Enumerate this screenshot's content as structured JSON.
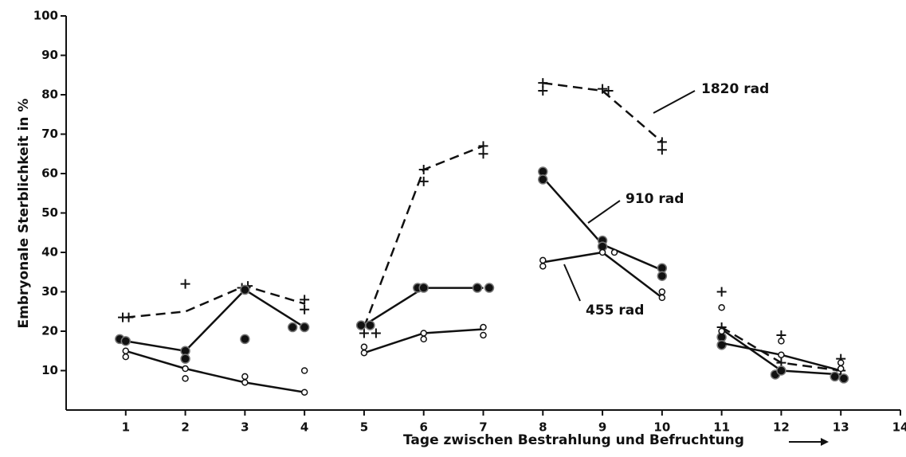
{
  "chart_data": {
    "type": "line",
    "y_label": "Embryonale   Sterblichkeit in %",
    "x_label": "Tage zwischen Bestrahlung und Befruchtung",
    "xlim": [
      0,
      14
    ],
    "xticks": [
      1,
      2,
      3,
      4,
      5,
      6,
      7,
      8,
      9,
      10,
      11,
      12,
      13,
      14
    ],
    "ylim": [
      0,
      100
    ],
    "yticks": [
      10,
      20,
      30,
      40,
      50,
      60,
      70,
      80,
      90,
      100
    ],
    "x": [
      1,
      2,
      3,
      4,
      null,
      5,
      6,
      7,
      null,
      8,
      9,
      10,
      null,
      11,
      12,
      13
    ],
    "series": [
      {
        "name": "1820 rad",
        "color": "#111111",
        "dashed": true,
        "marker": "plus",
        "values": [
          23.5,
          25,
          31.5,
          27,
          null,
          21,
          61,
          67,
          null,
          83,
          81,
          68,
          null,
          21,
          12,
          10
        ],
        "points": {
          "x": [
            0.95,
            1.05,
            2,
            2.95,
            3.05,
            4,
            4,
            5,
            5.2,
            6,
            6,
            7,
            7,
            8,
            8,
            9,
            9.1,
            10,
            10,
            11,
            11,
            12,
            12,
            13,
            13
          ],
          "y": [
            23.5,
            23.5,
            32,
            31,
            31.5,
            28,
            25.5,
            19.5,
            19.5,
            58,
            61,
            67,
            65,
            83,
            81,
            81.5,
            81,
            68,
            66,
            30,
            21,
            19,
            12,
            13,
            10
          ]
        }
      },
      {
        "name": "910 rad",
        "color": "#111111",
        "dashed": false,
        "marker": "filled-circle",
        "values": [
          17.5,
          15,
          30.5,
          21,
          null,
          21.5,
          31,
          31,
          null,
          59,
          42,
          35.5,
          null,
          20.5,
          10,
          9
        ],
        "points": {
          "x": [
            0.9,
            1,
            2,
            2,
            3,
            3,
            3.8,
            4,
            4.95,
            5.1,
            5.9,
            6,
            6.9,
            7.1,
            8,
            8,
            9,
            9,
            10,
            10,
            11,
            11,
            11.9,
            12,
            12.9,
            13.05
          ],
          "y": [
            18,
            17.5,
            15,
            13,
            30.5,
            18,
            21,
            21,
            21.5,
            21.5,
            31,
            31,
            31,
            31,
            60.5,
            58.5,
            43,
            41.5,
            36,
            34,
            18.5,
            16.5,
            9,
            10,
            8.5,
            8
          ]
        }
      },
      {
        "name": "455 rad",
        "color": "#111111",
        "dashed": false,
        "marker": "open-circle",
        "values": [
          15,
          10.5,
          7,
          4.5,
          null,
          14.5,
          19.5,
          20.5,
          null,
          37.5,
          40,
          28.5,
          null,
          17,
          14,
          10
        ],
        "points": {
          "x": [
            1,
            1,
            2,
            2,
            3,
            3,
            4,
            4,
            5,
            5,
            6,
            6,
            7,
            7,
            8,
            8,
            9,
            9.2,
            10,
            10,
            11,
            11,
            12,
            12,
            13,
            13
          ],
          "y": [
            15,
            13.5,
            10.5,
            8,
            8.5,
            7,
            10,
            4.5,
            16,
            14.5,
            19.5,
            18,
            21,
            19,
            38,
            36.5,
            40,
            40,
            30,
            28.5,
            26,
            20,
            17.5,
            14,
            12,
            10.5
          ]
        }
      }
    ]
  }
}
